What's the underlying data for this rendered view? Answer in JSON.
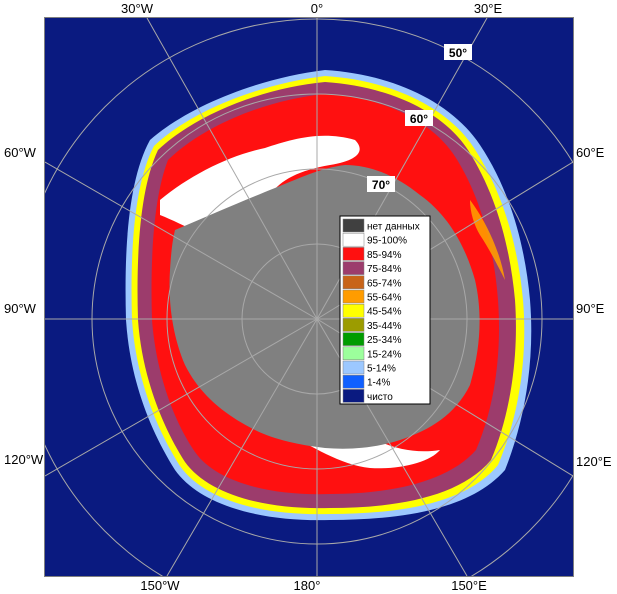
{
  "map": {
    "colors": {
      "ocean": "#0a1a80",
      "land": "#808080",
      "frame": "#7f7f7f"
    },
    "lon_labels": {
      "top": [
        "30°W",
        "0°",
        "30°E"
      ],
      "bottom": [
        "150°W",
        "180°",
        "150°E"
      ],
      "left": [
        "60°W",
        "90°W",
        "120°W"
      ],
      "right": [
        "60°E",
        "90°E",
        "120°E"
      ]
    },
    "lat_labels": [
      "50°",
      "60°",
      "70°"
    ]
  },
  "legend": {
    "items": [
      {
        "label": "нет данных",
        "color": "#404040"
      },
      {
        "label": "95-100%",
        "color": "#ffffff"
      },
      {
        "label": "85-94%",
        "color": "#ff1010"
      },
      {
        "label": "75-84%",
        "color": "#9c3c6c"
      },
      {
        "label": "65-74%",
        "color": "#c86418"
      },
      {
        "label": "55-64%",
        "color": "#ff9c00"
      },
      {
        "label": "45-54%",
        "color": "#ffff00"
      },
      {
        "label": "35-44%",
        "color": "#9c9c00"
      },
      {
        "label": "25-34%",
        "color": "#009c00"
      },
      {
        "label": "15-24%",
        "color": "#9cff9c"
      },
      {
        "label": "5-14%",
        "color": "#9cc8ff"
      },
      {
        "label": "1-4%",
        "color": "#1060ff"
      },
      {
        "label": "чисто",
        "color": "#0a1a80"
      }
    ]
  }
}
